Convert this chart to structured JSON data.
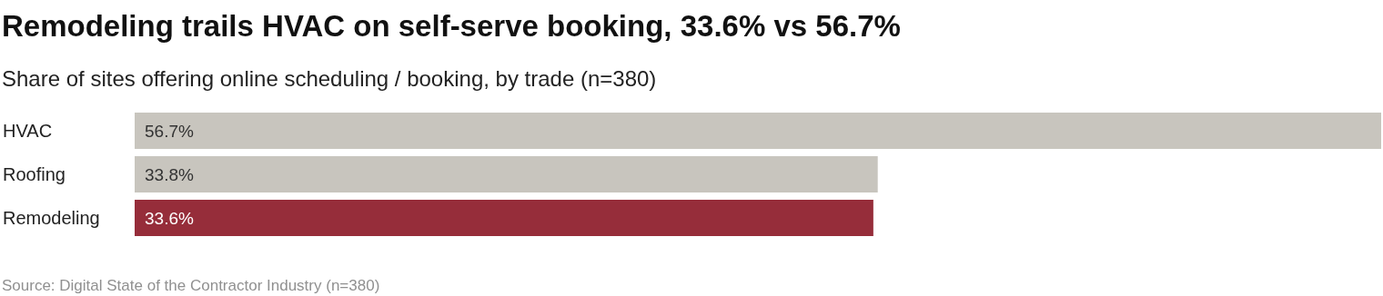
{
  "chart_data": {
    "type": "bar",
    "orientation": "horizontal",
    "title": "Remodeling trails HVAC on self-serve booking, 33.6% vs 56.7%",
    "subtitle": "Share of sites offering online scheduling / booking, by trade (n=380)",
    "categories": [
      "HVAC",
      "Roofing",
      "Remodeling"
    ],
    "values": [
      56.7,
      33.8,
      33.6
    ],
    "colors": [
      "#c8c5be",
      "#c8c5be",
      "#962d3a"
    ],
    "value_labels": [
      "56.7%",
      "33.8%",
      "33.6%"
    ],
    "annotations": [
      "Source: Digital State of the Contractor Industry (n=380)"
    ]
  }
}
